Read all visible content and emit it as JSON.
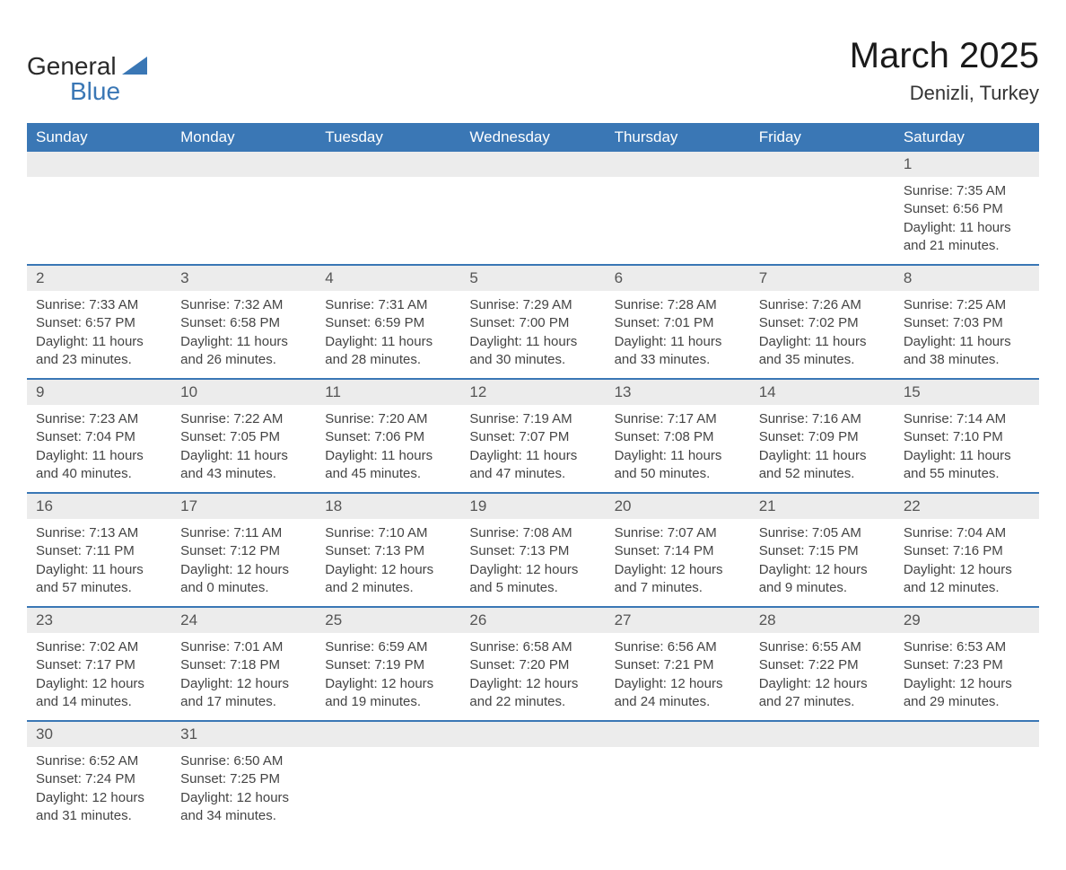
{
  "brand": {
    "line1": "General",
    "line2": "Blue",
    "iconColor": "#3a77b5"
  },
  "title": {
    "month": "March 2025",
    "location": "Denizli, Turkey"
  },
  "colors": {
    "headerBg": "#3a77b5",
    "headerText": "#ffffff",
    "rowStripe": "#ececec",
    "rowBorder": "#3a77b5",
    "bodyText": "#444444"
  },
  "weekdays": [
    "Sunday",
    "Monday",
    "Tuesday",
    "Wednesday",
    "Thursday",
    "Friday",
    "Saturday"
  ],
  "weeks": [
    [
      null,
      null,
      null,
      null,
      null,
      null,
      {
        "n": "1",
        "sunrise": "7:35 AM",
        "sunset": "6:56 PM",
        "dayH": "11",
        "dayM": "21"
      }
    ],
    [
      {
        "n": "2",
        "sunrise": "7:33 AM",
        "sunset": "6:57 PM",
        "dayH": "11",
        "dayM": "23"
      },
      {
        "n": "3",
        "sunrise": "7:32 AM",
        "sunset": "6:58 PM",
        "dayH": "11",
        "dayM": "26"
      },
      {
        "n": "4",
        "sunrise": "7:31 AM",
        "sunset": "6:59 PM",
        "dayH": "11",
        "dayM": "28"
      },
      {
        "n": "5",
        "sunrise": "7:29 AM",
        "sunset": "7:00 PM",
        "dayH": "11",
        "dayM": "30"
      },
      {
        "n": "6",
        "sunrise": "7:28 AM",
        "sunset": "7:01 PM",
        "dayH": "11",
        "dayM": "33"
      },
      {
        "n": "7",
        "sunrise": "7:26 AM",
        "sunset": "7:02 PM",
        "dayH": "11",
        "dayM": "35"
      },
      {
        "n": "8",
        "sunrise": "7:25 AM",
        "sunset": "7:03 PM",
        "dayH": "11",
        "dayM": "38"
      }
    ],
    [
      {
        "n": "9",
        "sunrise": "7:23 AM",
        "sunset": "7:04 PM",
        "dayH": "11",
        "dayM": "40"
      },
      {
        "n": "10",
        "sunrise": "7:22 AM",
        "sunset": "7:05 PM",
        "dayH": "11",
        "dayM": "43"
      },
      {
        "n": "11",
        "sunrise": "7:20 AM",
        "sunset": "7:06 PM",
        "dayH": "11",
        "dayM": "45"
      },
      {
        "n": "12",
        "sunrise": "7:19 AM",
        "sunset": "7:07 PM",
        "dayH": "11",
        "dayM": "47"
      },
      {
        "n": "13",
        "sunrise": "7:17 AM",
        "sunset": "7:08 PM",
        "dayH": "11",
        "dayM": "50"
      },
      {
        "n": "14",
        "sunrise": "7:16 AM",
        "sunset": "7:09 PM",
        "dayH": "11",
        "dayM": "52"
      },
      {
        "n": "15",
        "sunrise": "7:14 AM",
        "sunset": "7:10 PM",
        "dayH": "11",
        "dayM": "55"
      }
    ],
    [
      {
        "n": "16",
        "sunrise": "7:13 AM",
        "sunset": "7:11 PM",
        "dayH": "11",
        "dayM": "57"
      },
      {
        "n": "17",
        "sunrise": "7:11 AM",
        "sunset": "7:12 PM",
        "dayH": "12",
        "dayM": "0"
      },
      {
        "n": "18",
        "sunrise": "7:10 AM",
        "sunset": "7:13 PM",
        "dayH": "12",
        "dayM": "2"
      },
      {
        "n": "19",
        "sunrise": "7:08 AM",
        "sunset": "7:13 PM",
        "dayH": "12",
        "dayM": "5"
      },
      {
        "n": "20",
        "sunrise": "7:07 AM",
        "sunset": "7:14 PM",
        "dayH": "12",
        "dayM": "7"
      },
      {
        "n": "21",
        "sunrise": "7:05 AM",
        "sunset": "7:15 PM",
        "dayH": "12",
        "dayM": "9"
      },
      {
        "n": "22",
        "sunrise": "7:04 AM",
        "sunset": "7:16 PM",
        "dayH": "12",
        "dayM": "12"
      }
    ],
    [
      {
        "n": "23",
        "sunrise": "7:02 AM",
        "sunset": "7:17 PM",
        "dayH": "12",
        "dayM": "14"
      },
      {
        "n": "24",
        "sunrise": "7:01 AM",
        "sunset": "7:18 PM",
        "dayH": "12",
        "dayM": "17"
      },
      {
        "n": "25",
        "sunrise": "6:59 AM",
        "sunset": "7:19 PM",
        "dayH": "12",
        "dayM": "19"
      },
      {
        "n": "26",
        "sunrise": "6:58 AM",
        "sunset": "7:20 PM",
        "dayH": "12",
        "dayM": "22"
      },
      {
        "n": "27",
        "sunrise": "6:56 AM",
        "sunset": "7:21 PM",
        "dayH": "12",
        "dayM": "24"
      },
      {
        "n": "28",
        "sunrise": "6:55 AM",
        "sunset": "7:22 PM",
        "dayH": "12",
        "dayM": "27"
      },
      {
        "n": "29",
        "sunrise": "6:53 AM",
        "sunset": "7:23 PM",
        "dayH": "12",
        "dayM": "29"
      }
    ],
    [
      {
        "n": "30",
        "sunrise": "6:52 AM",
        "sunset": "7:24 PM",
        "dayH": "12",
        "dayM": "31"
      },
      {
        "n": "31",
        "sunrise": "6:50 AM",
        "sunset": "7:25 PM",
        "dayH": "12",
        "dayM": "34"
      },
      null,
      null,
      null,
      null,
      null
    ]
  ],
  "labels": {
    "sunrise": "Sunrise: ",
    "sunset": "Sunset: ",
    "daylightA": "Daylight: ",
    "daylightB": " hours",
    "daylightC": "and ",
    "daylightD": " minutes."
  }
}
